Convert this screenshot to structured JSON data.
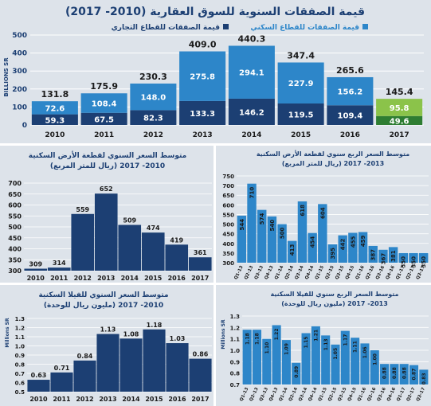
{
  "chart_data": [
    {
      "type": "bar",
      "title": "قيمة الصفقات السنوية للسوق العقارية (2010- 2017)",
      "ylabel": "BILLIONS SR",
      "ylim": [
        0,
        500
      ],
      "yticks": [
        0,
        100,
        200,
        300,
        400,
        500
      ],
      "legend": [
        "قيمة الصفقات للقطاع التجاري",
        "قيمة الصفقات للقطاع السكني"
      ],
      "categories": [
        "2010",
        "2011",
        "2012",
        "2013",
        "2014",
        "2015",
        "2016",
        "2017"
      ],
      "series": [
        {
          "name": "قيمة الصفقات للقطاع التجاري",
          "values": [
            59.3,
            67.5,
            82.3,
            133.3,
            146.2,
            119.5,
            109.4,
            49.6
          ]
        },
        {
          "name": "قيمة الصفقات للقطاع السكني",
          "values": [
            72.6,
            108.4,
            148.0,
            275.8,
            294.1,
            227.9,
            156.2,
            95.8
          ]
        }
      ],
      "totals": [
        131.8,
        175.9,
        230.3,
        409.0,
        440.3,
        347.4,
        265.6,
        145.4
      ],
      "colors": {
        "commercial": "#1c3f73",
        "residential": "#2d86c9",
        "commercial_2017": "#2e7d32",
        "residential_2017": "#8bc34a"
      }
    },
    {
      "type": "bar",
      "title": "متوسط السعر السنوي لقطعة الأرض السكنية",
      "subtitle": "(ريال للمتر المربع) 2010- 2017",
      "ylim": [
        300,
        700
      ],
      "yticks": [
        300,
        350,
        400,
        450,
        500,
        550,
        600,
        650,
        700
      ],
      "categories": [
        "2010",
        "2011",
        "2012",
        "2013",
        "2014",
        "2015",
        "2016",
        "2017"
      ],
      "values": [
        309,
        314,
        559,
        652,
        509,
        474,
        419,
        361
      ],
      "color": "#1c3f73"
    },
    {
      "type": "bar",
      "title": "متوسط السعر الربع سنوي لقطعة الأرض السكنية",
      "subtitle": "(ريال للمتر المربع) 2013- 2017",
      "ylim": [
        300,
        750
      ],
      "yticks": [
        300,
        350,
        400,
        450,
        500,
        550,
        600,
        650,
        700,
        750
      ],
      "categories": [
        "Q1-13",
        "Q2-13",
        "Q3-13",
        "Q4-13",
        "Q1-14",
        "Q2-14",
        "Q3-14",
        "Q4-14",
        "Q1-15",
        "Q2-15",
        "Q3-15",
        "Q4-15",
        "Q1-16",
        "Q2-16",
        "Q3-16",
        "Q4-16",
        "Q1-17",
        "Q2-17",
        "Q3-17"
      ],
      "values": [
        544,
        710,
        574,
        540,
        500,
        413,
        618,
        454,
        604,
        395,
        442,
        455,
        459,
        387,
        367,
        381,
        350,
        350,
        350
      ],
      "color": "#2d86c9"
    },
    {
      "type": "bar",
      "title": "متوسط السعر السنوي للفيلا السكنية",
      "subtitle": "(مليون ريال للوحدة) 2010- 2017",
      "ylabel": "Millions SR",
      "ylim": [
        0.5,
        1.3
      ],
      "yticks": [
        0.5,
        0.6,
        0.7,
        0.8,
        0.9,
        1.0,
        1.1,
        1.2,
        1.3
      ],
      "categories": [
        "2010",
        "2011",
        "2012",
        "2013",
        "2014",
        "2015",
        "2016",
        "2017"
      ],
      "values": [
        0.63,
        0.71,
        0.84,
        1.13,
        1.08,
        1.18,
        1.03,
        0.86
      ],
      "labels": [
        "0.63",
        "0.71",
        "0.84",
        "1.13",
        "1.08",
        "1.18",
        "1.03",
        "0.86"
      ],
      "color": "#1c3f73"
    },
    {
      "type": "bar",
      "title": "متوسط السعر الربع سنوي للفيلا السكنية",
      "subtitle": "(مليون ريال للوحدة) 2013- 2017",
      "ylabel": "Millions SR",
      "ylim": [
        0.7,
        1.3
      ],
      "yticks": [
        0.7,
        0.8,
        0.9,
        1.0,
        1.1,
        1.2,
        1.3
      ],
      "categories": [
        "Q1-13",
        "Q2-13",
        "Q3-13",
        "Q4-13",
        "Q1-14",
        "Q2-14",
        "Q3-14",
        "Q4-14",
        "Q1-15",
        "Q2-15",
        "Q3-15",
        "Q4-15",
        "Q1-16",
        "Q2-16",
        "Q3-16",
        "Q4-16",
        "Q1-17",
        "Q2-17",
        "Q3-17"
      ],
      "values": [
        1.18,
        1.18,
        1.1,
        1.22,
        1.09,
        0.89,
        1.15,
        1.21,
        1.13,
        1.05,
        1.17,
        1.11,
        1.06,
        1.0,
        0.88,
        0.88,
        0.88,
        0.87,
        0.83
      ],
      "labels": [
        "1.18",
        "1.18",
        "1.10",
        "1.22",
        "1.09",
        "0.89",
        "1.15",
        "1.21",
        "1.13",
        "1.05",
        "1.17",
        "1.11",
        "1.06",
        "1.00",
        "0.88",
        "0.88",
        "0.88",
        "0.87",
        "0.83"
      ],
      "color": "#2d86c9"
    }
  ]
}
